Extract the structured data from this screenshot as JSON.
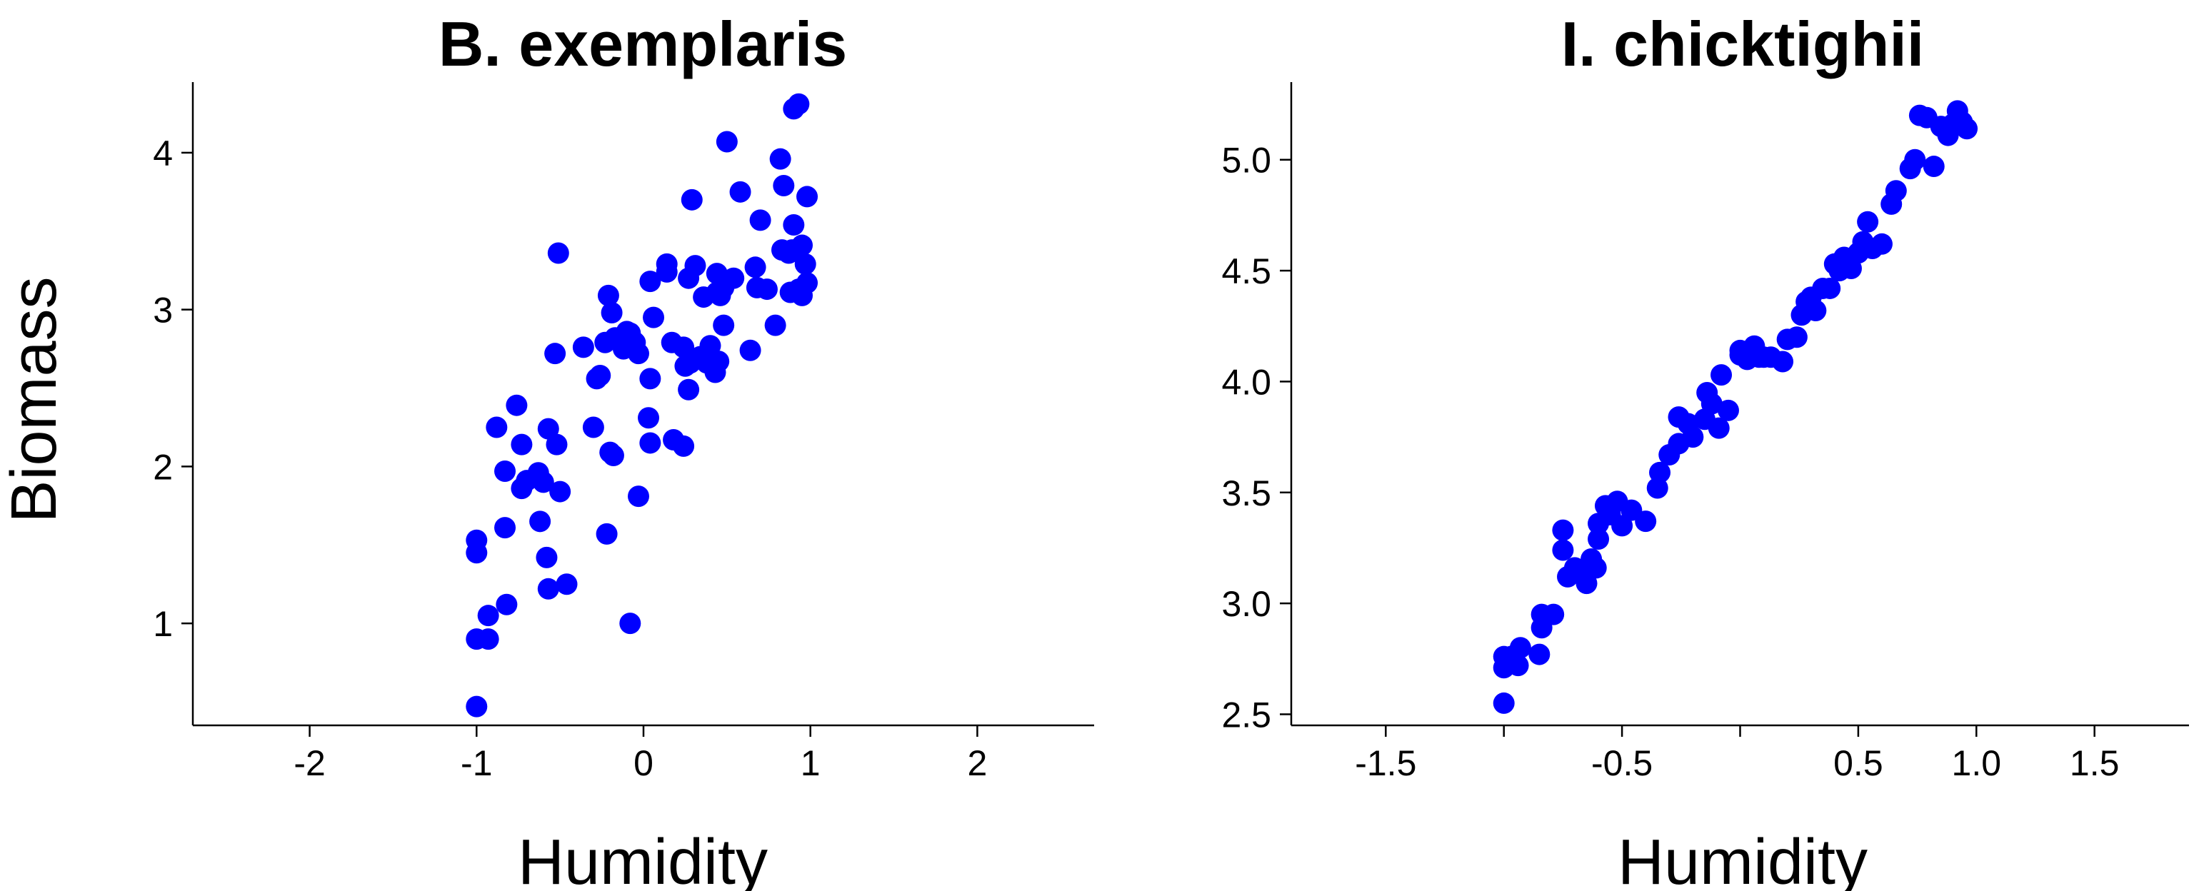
{
  "chart_data": [
    {
      "type": "scatter",
      "title": "B. exemplaris",
      "xlabel": "Humidity",
      "ylabel": "Biomass",
      "xlim": [
        -2.7,
        2.7
      ],
      "ylim": [
        0.35,
        4.45
      ],
      "x_ticks": [
        -2,
        -1,
        0,
        1,
        2
      ],
      "x_tick_labels": [
        "-2",
        "-1",
        "0",
        "1",
        "2"
      ],
      "y_ticks": [
        1,
        2,
        3,
        4
      ],
      "y_tick_labels": [
        "1",
        "2",
        "3",
        "4"
      ],
      "grid": false,
      "marker_color": "#0000ff",
      "points": [
        [
          -1.0,
          0.47
        ],
        [
          -1.0,
          0.9
        ],
        [
          -0.93,
          0.9
        ],
        [
          -0.93,
          1.05
        ],
        [
          -0.82,
          1.12
        ],
        [
          -1.0,
          1.45
        ],
        [
          -1.0,
          1.53
        ],
        [
          -0.83,
          1.61
        ],
        [
          -0.88,
          2.25
        ],
        [
          -0.83,
          1.97
        ],
        [
          -0.76,
          2.39
        ],
        [
          -0.73,
          2.14
        ],
        [
          -0.73,
          1.86
        ],
        [
          -0.7,
          1.91
        ],
        [
          -0.63,
          1.96
        ],
        [
          -0.6,
          1.9
        ],
        [
          -0.57,
          2.24
        ],
        [
          -0.52,
          2.14
        ],
        [
          -0.5,
          1.84
        ],
        [
          -0.58,
          1.42
        ],
        [
          -0.62,
          1.65
        ],
        [
          -0.57,
          1.22
        ],
        [
          -0.46,
          1.25
        ],
        [
          -0.53,
          2.72
        ],
        [
          -0.51,
          3.36
        ],
        [
          -0.36,
          2.76
        ],
        [
          -0.3,
          2.25
        ],
        [
          -0.28,
          2.56
        ],
        [
          -0.26,
          2.58
        ],
        [
          -0.21,
          3.09
        ],
        [
          -0.2,
          2.09
        ],
        [
          -0.18,
          2.07
        ],
        [
          -0.22,
          1.57
        ],
        [
          -0.19,
          2.98
        ],
        [
          -0.23,
          2.79
        ],
        [
          -0.17,
          2.82
        ],
        [
          -0.12,
          2.75
        ],
        [
          -0.1,
          2.86
        ],
        [
          -0.08,
          2.85
        ],
        [
          -0.05,
          2.79
        ],
        [
          -0.03,
          2.72
        ],
        [
          -0.03,
          1.81
        ],
        [
          -0.08,
          1.0
        ],
        [
          0.03,
          2.31
        ],
        [
          0.04,
          2.15
        ],
        [
          0.04,
          2.56
        ],
        [
          0.06,
          2.95
        ],
        [
          0.04,
          3.18
        ],
        [
          0.14,
          3.24
        ],
        [
          0.14,
          3.29
        ],
        [
          0.17,
          2.79
        ],
        [
          0.18,
          2.17
        ],
        [
          0.24,
          2.13
        ],
        [
          0.24,
          2.76
        ],
        [
          0.25,
          2.64
        ],
        [
          0.27,
          2.49
        ],
        [
          0.28,
          2.66
        ],
        [
          0.27,
          3.2
        ],
        [
          0.31,
          3.28
        ],
        [
          0.29,
          3.7
        ],
        [
          0.34,
          2.7
        ],
        [
          0.36,
          3.08
        ],
        [
          0.38,
          2.66
        ],
        [
          0.4,
          2.77
        ],
        [
          0.43,
          2.6
        ],
        [
          0.44,
          3.11
        ],
        [
          0.44,
          3.23
        ],
        [
          0.45,
          2.67
        ],
        [
          0.46,
          3.09
        ],
        [
          0.48,
          2.9
        ],
        [
          0.48,
          3.14
        ],
        [
          0.54,
          3.2
        ],
        [
          0.5,
          4.07
        ],
        [
          0.58,
          3.75
        ],
        [
          0.64,
          2.74
        ],
        [
          0.68,
          3.14
        ],
        [
          0.67,
          3.27
        ],
        [
          0.7,
          3.57
        ],
        [
          0.74,
          3.13
        ],
        [
          0.79,
          2.9
        ],
        [
          0.82,
          3.96
        ],
        [
          0.83,
          3.38
        ],
        [
          0.84,
          3.79
        ],
        [
          0.88,
          3.11
        ],
        [
          0.87,
          3.36
        ],
        [
          0.89,
          3.38
        ],
        [
          0.9,
          4.28
        ],
        [
          0.93,
          4.31
        ],
        [
          0.9,
          3.54
        ],
        [
          0.93,
          3.13
        ],
        [
          0.95,
          3.09
        ],
        [
          0.95,
          3.41
        ],
        [
          0.97,
          3.29
        ],
        [
          0.98,
          3.72
        ],
        [
          0.98,
          3.17
        ]
      ]
    },
    {
      "type": "scatter",
      "title": "I. chicktighii",
      "xlabel": "Humidity",
      "ylabel": "",
      "xlim": [
        -1.9,
        1.9
      ],
      "ylim": [
        2.45,
        5.35
      ],
      "x_ticks": [
        -1.5,
        -1.0,
        -0.5,
        0.0,
        0.5,
        1.0,
        1.5
      ],
      "x_tick_labels": [
        "-1.5",
        "",
        "-0.5",
        "",
        "0.5",
        "1.0",
        "1.5"
      ],
      "y_ticks": [
        2.5,
        3.0,
        3.5,
        4.0,
        4.5,
        5.0
      ],
      "y_tick_labels": [
        "2.5",
        "3.0",
        "3.5",
        "4.0",
        "4.5",
        "5.0"
      ],
      "grid": false,
      "marker_color": "#0000ff",
      "points": [
        [
          -1.0,
          2.55
        ],
        [
          -1.0,
          2.71
        ],
        [
          -1.0,
          2.76
        ],
        [
          -0.97,
          2.76
        ],
        [
          -0.94,
          2.72
        ],
        [
          -0.93,
          2.8
        ],
        [
          -0.85,
          2.77
        ],
        [
          -0.84,
          2.95
        ],
        [
          -0.79,
          2.95
        ],
        [
          -0.84,
          2.89
        ],
        [
          -0.75,
          3.24
        ],
        [
          -0.75,
          3.33
        ],
        [
          -0.73,
          3.12
        ],
        [
          -0.7,
          3.16
        ],
        [
          -0.68,
          3.14
        ],
        [
          -0.65,
          3.09
        ],
        [
          -0.63,
          3.2
        ],
        [
          -0.61,
          3.16
        ],
        [
          -0.6,
          3.29
        ],
        [
          -0.6,
          3.36
        ],
        [
          -0.57,
          3.44
        ],
        [
          -0.55,
          3.4
        ],
        [
          -0.52,
          3.46
        ],
        [
          -0.5,
          3.35
        ],
        [
          -0.46,
          3.42
        ],
        [
          -0.4,
          3.37
        ],
        [
          -0.35,
          3.52
        ],
        [
          -0.34,
          3.59
        ],
        [
          -0.3,
          3.67
        ],
        [
          -0.26,
          3.72
        ],
        [
          -0.26,
          3.84
        ],
        [
          -0.22,
          3.81
        ],
        [
          -0.2,
          3.75
        ],
        [
          -0.15,
          3.83
        ],
        [
          -0.14,
          3.95
        ],
        [
          -0.12,
          3.9
        ],
        [
          -0.09,
          3.79
        ],
        [
          -0.08,
          4.03
        ],
        [
          -0.05,
          3.87
        ],
        [
          0.0,
          4.12
        ],
        [
          0.0,
          4.14
        ],
        [
          0.03,
          4.1
        ],
        [
          0.06,
          4.16
        ],
        [
          0.08,
          4.11
        ],
        [
          0.1,
          4.11
        ],
        [
          0.13,
          4.11
        ],
        [
          0.18,
          4.09
        ],
        [
          0.2,
          4.19
        ],
        [
          0.24,
          4.2
        ],
        [
          0.26,
          4.3
        ],
        [
          0.28,
          4.36
        ],
        [
          0.3,
          4.38
        ],
        [
          0.32,
          4.32
        ],
        [
          0.35,
          4.42
        ],
        [
          0.38,
          4.42
        ],
        [
          0.4,
          4.53
        ],
        [
          0.42,
          4.5
        ],
        [
          0.44,
          4.56
        ],
        [
          0.47,
          4.51
        ],
        [
          0.5,
          4.58
        ],
        [
          0.52,
          4.63
        ],
        [
          0.54,
          4.72
        ],
        [
          0.56,
          4.6
        ],
        [
          0.6,
          4.62
        ],
        [
          0.64,
          4.8
        ],
        [
          0.66,
          4.86
        ],
        [
          0.72,
          4.96
        ],
        [
          0.74,
          5.0
        ],
        [
          0.76,
          5.2
        ],
        [
          0.79,
          5.19
        ],
        [
          0.82,
          4.97
        ],
        [
          0.85,
          5.15
        ],
        [
          0.88,
          5.11
        ],
        [
          0.9,
          5.16
        ],
        [
          0.92,
          5.22
        ],
        [
          0.94,
          5.17
        ],
        [
          0.96,
          5.14
        ]
      ]
    }
  ]
}
